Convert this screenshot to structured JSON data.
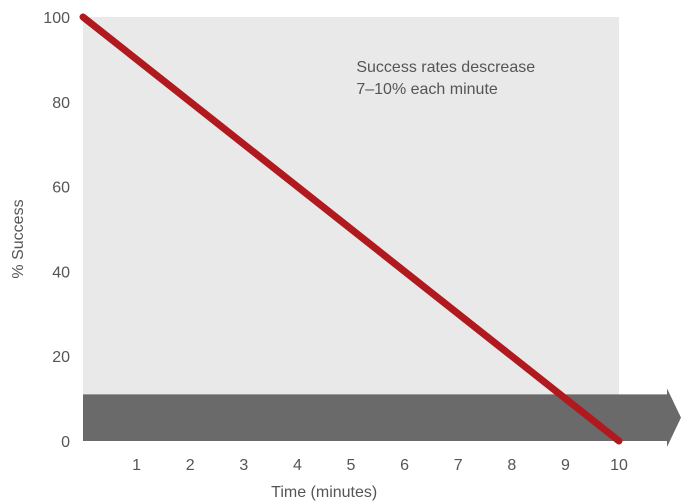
{
  "chart_data": {
    "type": "line",
    "title": "",
    "xlabel": "Time (minutes)",
    "ylabel": "% Success",
    "xlim": [
      0,
      10
    ],
    "ylim": [
      0,
      100
    ],
    "x_ticks": [
      1,
      2,
      3,
      4,
      5,
      6,
      7,
      8,
      9,
      10
    ],
    "y_ticks": [
      0,
      20,
      40,
      60,
      80,
      100
    ],
    "grid": false,
    "background_color": "#e9e9e9",
    "series": [
      {
        "x": [
          0,
          10
        ],
        "y": [
          100,
          0
        ],
        "color": "#b0191e"
      }
    ],
    "annotation": {
      "lines": [
        "Success rates descrease",
        "7–10% each minute"
      ],
      "x": 5.1,
      "y": 87
    },
    "time_arrow": {
      "from_y": 0,
      "to_y": 11,
      "color": "#6a6a6a"
    }
  }
}
